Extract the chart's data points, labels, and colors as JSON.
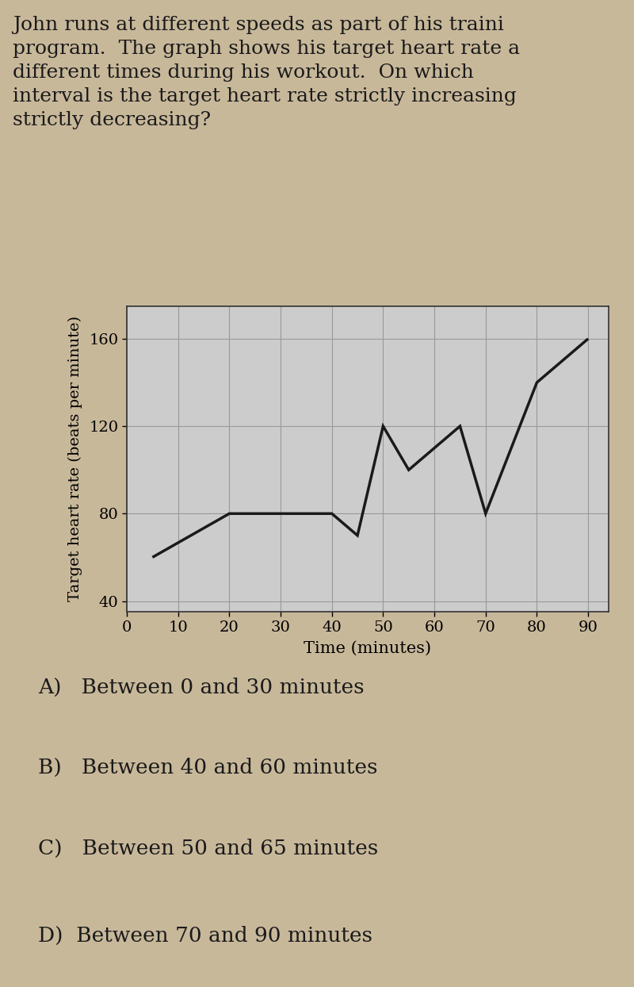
{
  "title_lines": [
    "John runs at different speeds as part of his traini",
    "program.  The graph shows his target heart rate a",
    "different times during his workout.  On which",
    "interval is the target heart rate strictly increasing",
    "strictly decreasing?"
  ],
  "x_data": [
    5,
    20,
    40,
    45,
    50,
    55,
    65,
    70,
    80,
    90
  ],
  "y_data": [
    60,
    80,
    80,
    70,
    120,
    100,
    120,
    80,
    140,
    160
  ],
  "xlabel": "Time (minutes)",
  "ylabel": "Target heart rate (beats per minute)",
  "xticks": [
    0,
    10,
    20,
    30,
    40,
    50,
    60,
    70,
    80,
    90
  ],
  "yticks": [
    40,
    80,
    120,
    160
  ],
  "xlim": [
    0,
    94
  ],
  "ylim": [
    35,
    175
  ],
  "line_color": "#1a1a1a",
  "line_width": 2.5,
  "plot_bg_color": "#cccccc",
  "page_bg_color": "#c8b89a",
  "answer_labels": [
    "A)   Between 0 and 30 minutes",
    "B)   Between 40 and 60 minutes",
    "C)   Between 50 and 65 minutes",
    "D)  Between 70 and 90 minutes"
  ],
  "answer_fontsize": 19,
  "title_fontsize": 18,
  "axis_label_fontsize": 15,
  "tick_fontsize": 14,
  "ylabel_fontsize": 14
}
